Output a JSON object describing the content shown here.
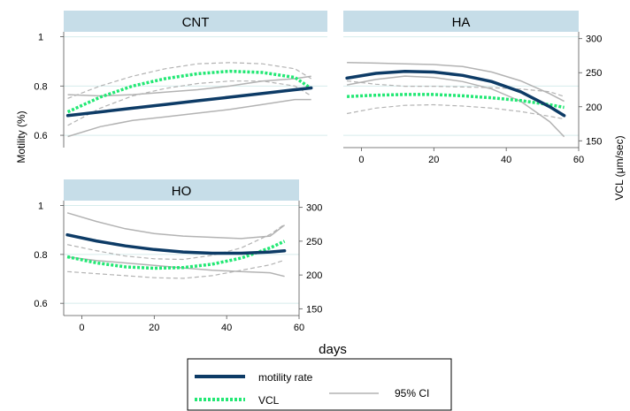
{
  "chart_data": {
    "type": "line",
    "xlabel": "days",
    "ylabel_left": "Motility (%)",
    "ylabel_right": "VCL (μm/sec)",
    "xlim": [
      -5,
      60
    ],
    "x_ticks": [
      "0",
      "20",
      "40",
      "60"
    ],
    "x_tick_values": [
      0,
      20,
      40,
      60
    ],
    "motility_ticks": [
      "0.6",
      "0.8",
      "1"
    ],
    "motility_tick_values": [
      0.6,
      0.8,
      1.0
    ],
    "motility_ylim": [
      0.55,
      1.02
    ],
    "vcl_ticks": [
      "150",
      "200",
      "250",
      "300"
    ],
    "vcl_tick_values": [
      150,
      200,
      250,
      300
    ],
    "vcl_ylim": [
      140,
      310
    ],
    "grid": true,
    "colors": {
      "motility": "#0d3b66",
      "vcl": "#22e874",
      "ci": "#b3b3b3",
      "header": "#c6dde8",
      "gridline": "#d6ecec"
    },
    "legend": {
      "position": "bottom",
      "items": [
        {
          "label": "motility rate",
          "style": "solid-dark-blue"
        },
        {
          "label": "VCL",
          "style": "dotted-green"
        },
        {
          "label": "95% CI",
          "style": "solid-gray"
        }
      ]
    },
    "panels": [
      {
        "title": "CNT",
        "x": [
          -4,
          4,
          12,
          20,
          28,
          36,
          44,
          52,
          56
        ],
        "motility": [
          0.68,
          0.695,
          0.71,
          0.725,
          0.74,
          0.755,
          0.77,
          0.785,
          0.792
        ],
        "motility_ci_lower": [
          0.595,
          0.635,
          0.66,
          0.675,
          0.69,
          0.705,
          0.725,
          0.745,
          0.745
        ],
        "motility_ci_upper": [
          0.765,
          0.76,
          0.765,
          0.775,
          0.785,
          0.8,
          0.82,
          0.83,
          0.84
        ],
        "vcl_motility_scale": [
          0.695,
          0.755,
          0.8,
          0.83,
          0.85,
          0.86,
          0.855,
          0.835,
          0.79
        ],
        "vcl_ci_lower": [
          0.64,
          0.71,
          0.76,
          0.79,
          0.81,
          0.82,
          0.82,
          0.8,
          0.76
        ],
        "vcl_ci_upper": [
          0.75,
          0.8,
          0.84,
          0.87,
          0.89,
          0.895,
          0.89,
          0.87,
          0.83
        ]
      },
      {
        "title": "HA",
        "x": [
          -4,
          4,
          12,
          20,
          28,
          36,
          44,
          52,
          56
        ],
        "vcl_units": "μm/sec",
        "motility_vcl_scale": [
          242,
          249,
          252,
          251,
          246,
          237,
          222,
          200,
          187
        ],
        "motility_ci_lower": [
          232,
          240,
          245,
          243,
          237,
          226,
          208,
          178,
          156
        ],
        "motility_ci_upper": [
          265,
          264,
          263,
          262,
          259,
          251,
          238,
          219,
          208
        ],
        "vcl": [
          215,
          217,
          218,
          218,
          216,
          213,
          209,
          203,
          199
        ],
        "vcl_ci_lower": [
          190,
          198,
          202,
          203,
          201,
          198,
          193,
          186,
          182
        ],
        "vcl_ci_upper": [
          238,
          233,
          230,
          230,
          229,
          228,
          226,
          222,
          215
        ]
      },
      {
        "title": "HO",
        "x": [
          -4,
          4,
          12,
          20,
          28,
          36,
          44,
          52,
          56
        ],
        "motility": [
          0.88,
          0.855,
          0.835,
          0.82,
          0.81,
          0.805,
          0.805,
          0.81,
          0.815
        ],
        "motility_ci_lower": [
          0.79,
          0.775,
          0.765,
          0.755,
          0.745,
          0.735,
          0.73,
          0.725,
          0.71
        ],
        "motility_ci_upper": [
          0.97,
          0.935,
          0.905,
          0.885,
          0.875,
          0.87,
          0.865,
          0.875,
          0.92
        ],
        "vcl": [
          227,
          218,
          212,
          210,
          211,
          216,
          225,
          240,
          250
        ],
        "vcl_ci_lower": [
          205,
          202,
          199,
          196,
          195,
          199,
          207,
          215,
          222
        ],
        "vcl_ci_upper": [
          245,
          236,
          228,
          224,
          223,
          229,
          240,
          260,
          275
        ]
      }
    ]
  }
}
